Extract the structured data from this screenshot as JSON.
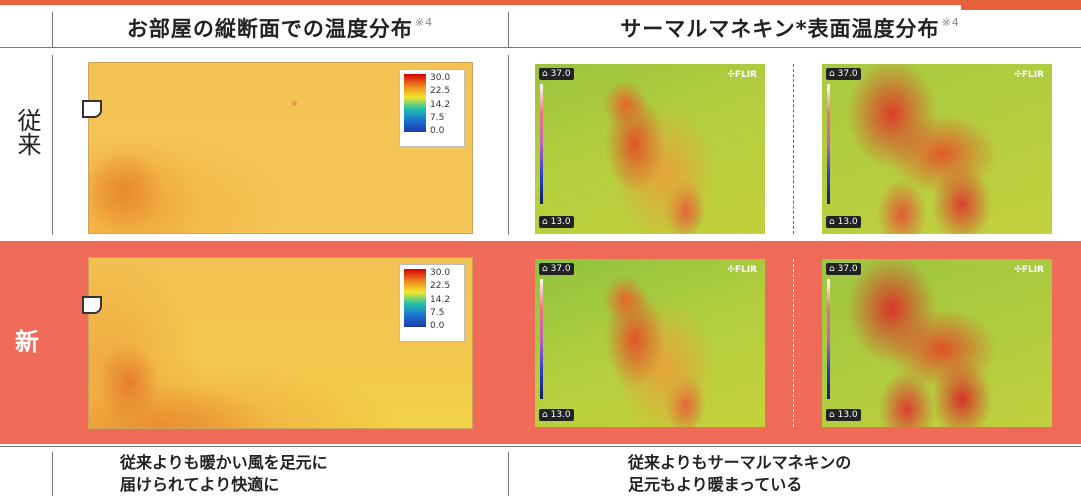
{
  "headers": {
    "left": "お部屋の縦断面での温度分布",
    "left_sup": "※4",
    "right": "サーマルマネキン*表面温度分布",
    "right_sup": "※4"
  },
  "rows": {
    "old_label": "従来",
    "new_label": "新"
  },
  "legend": {
    "values": [
      "30.0",
      "22.5",
      "14.2",
      "7.5",
      "0.0"
    ]
  },
  "thermal": {
    "top_reading": "37.0",
    "bottom_reading": "13.0",
    "brand": "FLIR"
  },
  "footer": {
    "left_line1": "従来よりも暖かい風を足元に",
    "left_line2": "届けられてより快適に",
    "right_line1": "従来よりもサーマルマネキンの",
    "right_line2": "足元もより暖まっている"
  },
  "colors": {
    "accent": "#e8603c",
    "new_row_bg": "#ef6b58"
  }
}
